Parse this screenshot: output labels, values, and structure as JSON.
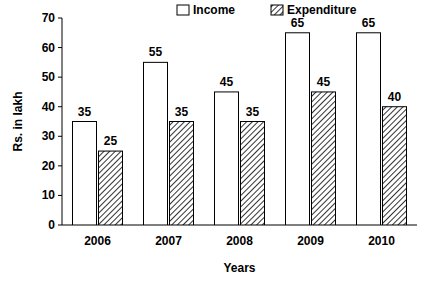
{
  "chart_data": {
    "type": "bar",
    "categories": [
      "2006",
      "2007",
      "2008",
      "2009",
      "2010"
    ],
    "series": [
      {
        "name": "Income",
        "color": "#ffffff",
        "values": [
          35,
          55,
          45,
          65,
          65
        ]
      },
      {
        "name": "Expenditure",
        "color": "#000000",
        "values": [
          25,
          35,
          35,
          45,
          40
        ]
      }
    ],
    "x_label": "Years",
    "y_label": "Rs. in lakh",
    "ylim": [
      0,
      70
    ],
    "yticks": [
      0,
      10,
      20,
      30,
      40,
      50,
      60,
      70
    ],
    "grid": false,
    "legend": "top",
    "data_labels": true
  }
}
